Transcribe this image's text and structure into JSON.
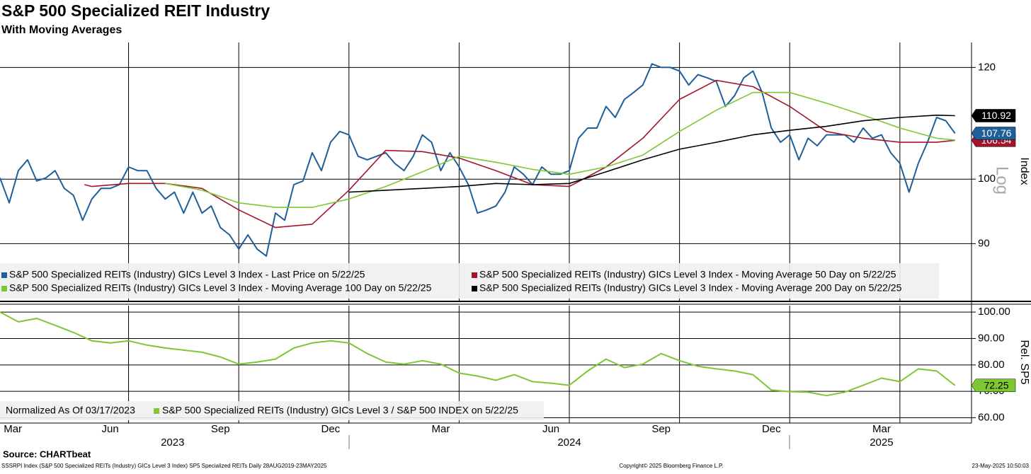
{
  "chart_data": [
    {
      "type": "line",
      "title": "S&P 500 Specialized REIT Industry",
      "subtitle": "With Moving Averages",
      "y_axis_label": "Index",
      "scale_label": "Log",
      "log": true,
      "ylim": [
        82,
        125
      ],
      "yticks": [
        90,
        100,
        120
      ],
      "xlim": [
        0.5,
        26.95
      ],
      "xgrid": [
        4,
        7,
        10,
        13,
        16,
        19,
        22,
        25
      ],
      "grid": true,
      "series": [
        {
          "name": "S&P 500 Specialized REITs (Industry) GICs Level 3 Index - Last Price on 5/22/25",
          "color": "#1f5f99",
          "end_label": true,
          "x": [
            0.5,
            0.75,
            1,
            1.25,
            1.5,
            1.75,
            2,
            2.25,
            2.5,
            2.75,
            3,
            3.25,
            3.5,
            3.75,
            4,
            4.25,
            4.5,
            4.75,
            5,
            5.25,
            5.5,
            5.75,
            6,
            6.25,
            6.5,
            6.75,
            7,
            7.25,
            7.5,
            7.75,
            8,
            8.25,
            8.5,
            8.75,
            9,
            9.25,
            9.5,
            9.75,
            10,
            10.25,
            10.5,
            10.75,
            11,
            11.25,
            11.5,
            11.75,
            12,
            12.25,
            12.5,
            12.75,
            13,
            13.25,
            13.5,
            13.75,
            14,
            14.25,
            14.5,
            14.75,
            15,
            15.25,
            15.5,
            15.75,
            16,
            16.25,
            16.5,
            16.75,
            17,
            17.25,
            17.5,
            17.75,
            18,
            18.25,
            18.5,
            18.75,
            19,
            19.25,
            19.5,
            19.75,
            20,
            20.25,
            20.5,
            20.75,
            21,
            21.25,
            21.5,
            21.75,
            22,
            22.25,
            22.5,
            22.75,
            23,
            23.25,
            23.5,
            23.75,
            24,
            24.25,
            24.5,
            24.75,
            25,
            25.25,
            25.5,
            25.75,
            26,
            26.25,
            26.5
          ],
          "values": [
            100.2,
            96.2,
            101.4,
            103.2,
            99.7,
            100.2,
            101.4,
            98.5,
            97.4,
            93.5,
            96.8,
            98.5,
            98.5,
            99.1,
            102.0,
            101.4,
            101.4,
            98.5,
            96.8,
            97.9,
            94.6,
            97.9,
            94.6,
            95.7,
            92.4,
            91.3,
            89.2,
            91.3,
            89.2,
            88.2,
            94.6,
            93.5,
            99.1,
            99.7,
            104.4,
            101.4,
            106.2,
            108.1,
            107.5,
            103.8,
            103.2,
            103.8,
            104.4,
            102.6,
            101.4,
            103.8,
            107.5,
            106.2,
            101.4,
            104.4,
            102.0,
            99.1,
            94.6,
            95.1,
            95.7,
            97.9,
            102.0,
            100.8,
            99.1,
            102.0,
            100.8,
            100.8,
            101.4,
            106.9,
            108.7,
            108.7,
            112.6,
            110.6,
            113.9,
            115.2,
            116.6,
            120.7,
            120.0,
            120.0,
            119.3,
            116.6,
            118.6,
            118.0,
            117.3,
            112.6,
            114.6,
            118.0,
            119.3,
            115.2,
            108.7,
            106.2,
            107.5,
            103.2,
            106.9,
            105.6,
            107.5,
            107.5,
            107.5,
            106.2,
            108.7,
            106.9,
            107.5,
            104.4,
            102.6,
            97.9,
            102.6,
            106.2,
            110.6,
            110.0,
            107.76
          ]
        },
        {
          "name": "S&P 500 Specialized REITs (Industry) GICs Level 3 Index - Moving Average 50 Day on 5/22/25",
          "color": "#a3142a",
          "end_label": true,
          "x": [
            2.8,
            3,
            4,
            5,
            6,
            7,
            8,
            9,
            10,
            11,
            12,
            13,
            14,
            15,
            16,
            17,
            18,
            19,
            20,
            21,
            22,
            23,
            24,
            25,
            26,
            26.5
          ],
          "values": [
            99.1,
            98.8,
            99.3,
            99.3,
            98.5,
            95.1,
            92.4,
            92.9,
            98.2,
            104.8,
            104.6,
            103.5,
            101.4,
            99.1,
            98.8,
            102.0,
            106.9,
            113.9,
            117.5,
            116.3,
            112.6,
            108.1,
            106.9,
            106.2,
            106.2,
            106.54
          ]
        },
        {
          "name": "S&P 500 Specialized REITs (Industry) GICs Level 3 Index - Moving Average 100 Day on 5/22/25",
          "color": "#7dc832",
          "end_label": false,
          "x": [
            5,
            6,
            7,
            8,
            9,
            10,
            11,
            12,
            13,
            14,
            15,
            16,
            17,
            18,
            19,
            20,
            21,
            22,
            23,
            24,
            25,
            26,
            26.5
          ],
          "values": [
            99.3,
            98.2,
            96.2,
            95.5,
            95.5,
            96.8,
            98.8,
            101.2,
            103.8,
            102.8,
            101.6,
            100.8,
            102.0,
            104.0,
            108.1,
            111.9,
            115.2,
            115.2,
            113.2,
            111.0,
            108.7,
            106.9,
            106.6
          ]
        },
        {
          "name": "S&P 500 Specialized REITs (Industry) GICs Level 3 Index - Moving Average 200 Day on 5/22/25",
          "color": "#000000",
          "end_label": true,
          "x": [
            10,
            11,
            12,
            13,
            14,
            15,
            16,
            17,
            18,
            19,
            20,
            21,
            22,
            23,
            24,
            25,
            26,
            26.5
          ],
          "values": [
            97.9,
            98.2,
            98.5,
            98.8,
            99.3,
            99.1,
            99.3,
            101.2,
            103.2,
            105.0,
            106.2,
            107.5,
            108.3,
            109.0,
            110.0,
            110.6,
            111.0,
            110.92
          ]
        }
      ]
    },
    {
      "type": "line",
      "y_axis_label": "Rel. SP5",
      "note": "Normalized As Of 03/17/2023",
      "ylim": [
        58,
        100.3
      ],
      "yticks": [
        {
          "value": 60,
          "label": "60.00"
        },
        {
          "value": 70,
          "label": "70.00"
        },
        {
          "value": 80,
          "label": "80.00"
        },
        {
          "value": 90,
          "label": "90.00"
        },
        {
          "value": 100,
          "label": "100.00"
        }
      ],
      "xlim": [
        0.5,
        26.95
      ],
      "xgrid": [
        4,
        7,
        10,
        13,
        16,
        19,
        22,
        25
      ],
      "grid": true,
      "xticks": [
        {
          "value": 0.85,
          "label": "Mar"
        },
        {
          "value": 3.5,
          "label": "Jun"
        },
        {
          "value": 6.5,
          "label": "Sep"
        },
        {
          "value": 9.5,
          "label": "Dec"
        },
        {
          "value": 12.5,
          "label": "Mar"
        },
        {
          "value": 15.5,
          "label": "Jun"
        },
        {
          "value": 18.5,
          "label": "Sep"
        },
        {
          "value": 21.5,
          "label": "Dec"
        },
        {
          "value": 24.5,
          "label": "Mar"
        }
      ],
      "year_labels": [
        {
          "value": 5.2,
          "label": "2023"
        },
        {
          "value": 16,
          "label": "2024"
        },
        {
          "value": 24.5,
          "label": "2025"
        }
      ],
      "series": [
        {
          "name": "S&P 500 Specialized REITs (Industry) GICs Level 3 / S&P 500 INDEX on 5/22/25",
          "color": "#7dc832",
          "end_label": true,
          "x": [
            0.5,
            1,
            1.5,
            2,
            2.5,
            3,
            3.5,
            4,
            4.5,
            5,
            5.5,
            6,
            6.5,
            7,
            7.5,
            8,
            8.5,
            9,
            9.5,
            10,
            10.5,
            11,
            11.5,
            12,
            12.5,
            13,
            13.5,
            14,
            14.5,
            15,
            15.5,
            16,
            16.5,
            17,
            17.5,
            18,
            18.5,
            19,
            19.5,
            20,
            20.5,
            21,
            21.5,
            22,
            22.5,
            23,
            23.5,
            24,
            24.5,
            25,
            25.5,
            26,
            26.5
          ],
          "values": [
            100,
            96.3,
            97.6,
            95.0,
            92.3,
            89.1,
            88.3,
            89.1,
            87.5,
            86.4,
            85.6,
            84.8,
            83.0,
            80.3,
            81.1,
            82.2,
            86.4,
            88.3,
            89.1,
            88.3,
            84.3,
            81.1,
            80.3,
            81.6,
            80.3,
            76.9,
            75.8,
            74.2,
            76.3,
            73.7,
            73.1,
            72.3,
            77.7,
            82.2,
            79.0,
            80.3,
            84.3,
            81.6,
            79.5,
            78.5,
            77.7,
            76.3,
            70.5,
            69.9,
            69.7,
            68.4,
            69.7,
            72.3,
            75.0,
            73.7,
            78.5,
            77.7,
            72.25
          ]
        }
      ]
    }
  ],
  "footer": {
    "source": "Source: CHARTbeat",
    "left": "SSSRPI Index (S&P 500 Specialized REITs (Industry) GICs Level 3 Index) SP5 Specialized REITs  Daily 28AUG2019-23MAY2025",
    "center": "Copyright© 2025 Bloomberg Finance L.P.",
    "right": "23-May-2025 10:50:03"
  }
}
